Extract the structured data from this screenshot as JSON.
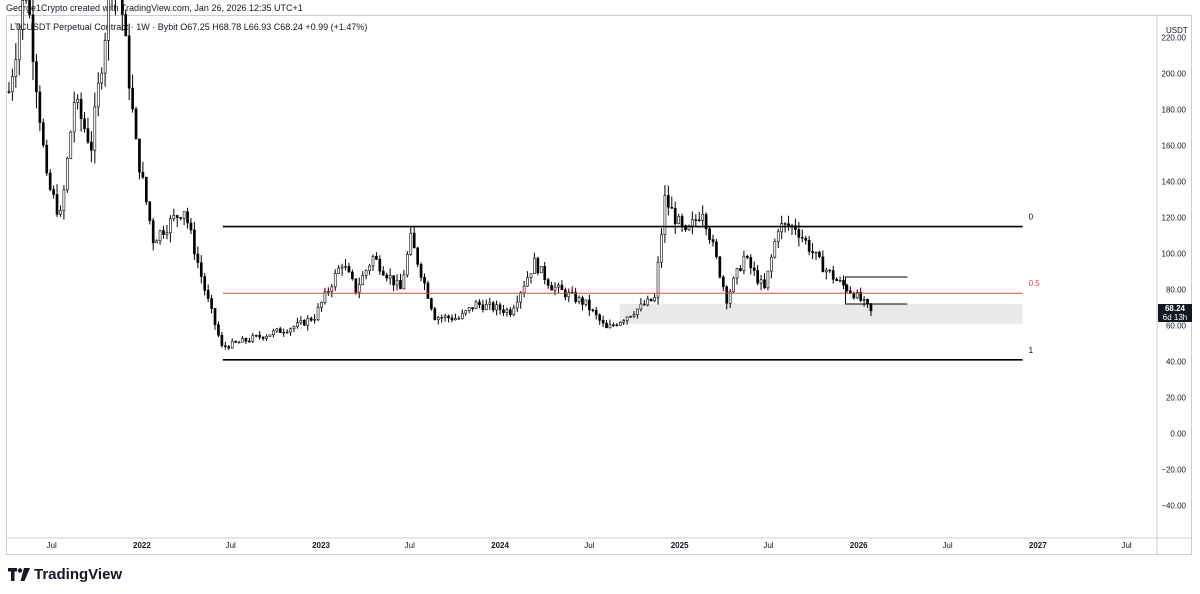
{
  "header": {
    "text": "George1Crypto created with TradingView.com, Jan 26, 2026 12:35 UTC+1"
  },
  "legend": {
    "symbol": "LTCUSDT Perpetual Contract · 1W · Bybit",
    "ohlc": "O67.25 H68.78 L66.93 C68.24 +0.99 (+1.47%)"
  },
  "price_tag": {
    "price": "68.24",
    "countdown": "6d 13h"
  },
  "brand": {
    "name": "TradingView"
  },
  "chart_data": {
    "type": "candlestick",
    "y_axis": {
      "unit": "USDT",
      "ticks": [
        -40,
        -20,
        0,
        20,
        40,
        60,
        80,
        100,
        120,
        140,
        160,
        180,
        200,
        220
      ],
      "tick_labels": [
        "−40.00",
        "−20.00",
        "0.00",
        "20.00",
        "40.00",
        "60.00",
        "80.00",
        "100.00",
        "120.00",
        "140.00",
        "160.00",
        "180.00",
        "200.00",
        "220.00"
      ],
      "ylim": [
        -58,
        232
      ]
    },
    "x_axis": {
      "range": [
        "2021-04-01",
        "2027-09-01"
      ],
      "ticks": [
        {
          "date": "2021-07-01",
          "label": "Jul",
          "bold": false
        },
        {
          "date": "2022-01-01",
          "label": "2022",
          "bold": true
        },
        {
          "date": "2022-07-01",
          "label": "Jul",
          "bold": false
        },
        {
          "date": "2023-01-01",
          "label": "2023",
          "bold": true
        },
        {
          "date": "2023-07-01",
          "label": "Jul",
          "bold": false
        },
        {
          "date": "2024-01-01",
          "label": "2024",
          "bold": true
        },
        {
          "date": "2024-07-01",
          "label": "Jul",
          "bold": false
        },
        {
          "date": "2025-01-01",
          "label": "2025",
          "bold": true
        },
        {
          "date": "2025-07-01",
          "label": "Jul",
          "bold": false
        },
        {
          "date": "2026-01-01",
          "label": "2026",
          "bold": true
        },
        {
          "date": "2026-07-01",
          "label": "Jul",
          "bold": false
        },
        {
          "date": "2027-01-01",
          "label": "2027",
          "bold": true
        },
        {
          "date": "2027-07-01",
          "label": "Jul",
          "bold": false
        }
      ]
    },
    "range_levels": [
      {
        "label": "0",
        "value": 115,
        "color": "#000000",
        "from": "2022-06-15",
        "to": "2026-12-01"
      },
      {
        "label": "0.5",
        "value": 78,
        "color": "#e0463f",
        "from": "2022-06-15",
        "to": "2026-12-01"
      },
      {
        "label": "1",
        "value": 41,
        "color": "#000000",
        "from": "2022-06-15",
        "to": "2026-12-01"
      }
    ],
    "zone": {
      "from": "2024-09-01",
      "to": "2026-12-01",
      "low": 61,
      "high": 72,
      "color": "#e9e9ea"
    },
    "trend_boxes": [
      {
        "from": "2025-12-05",
        "to": "2026-04-10",
        "top": 87,
        "bottom": 72
      }
    ],
    "candle_anchors": [
      {
        "date": "2021-04-05",
        "price": 190
      },
      {
        "date": "2021-05-10",
        "price": 250
      },
      {
        "date": "2021-06-21",
        "price": 140
      },
      {
        "date": "2021-07-20",
        "price": 120
      },
      {
        "date": "2021-08-16",
        "price": 185
      },
      {
        "date": "2021-09-20",
        "price": 160
      },
      {
        "date": "2021-11-08",
        "price": 270
      },
      {
        "date": "2021-12-20",
        "price": 160
      },
      {
        "date": "2022-01-24",
        "price": 108
      },
      {
        "date": "2022-03-28",
        "price": 125
      },
      {
        "date": "2022-05-09",
        "price": 80
      },
      {
        "date": "2022-06-13",
        "price": 48
      },
      {
        "date": "2022-09-12",
        "price": 55
      },
      {
        "date": "2022-11-14",
        "price": 60
      },
      {
        "date": "2022-12-19",
        "price": 65
      },
      {
        "date": "2023-02-13",
        "price": 95
      },
      {
        "date": "2023-03-13",
        "price": 80
      },
      {
        "date": "2023-04-17",
        "price": 98
      },
      {
        "date": "2023-06-12",
        "price": 80
      },
      {
        "date": "2023-07-03",
        "price": 108
      },
      {
        "date": "2023-08-21",
        "price": 65
      },
      {
        "date": "2023-10-09",
        "price": 64
      },
      {
        "date": "2023-11-13",
        "price": 72
      },
      {
        "date": "2024-01-22",
        "price": 68
      },
      {
        "date": "2024-03-11",
        "price": 95
      },
      {
        "date": "2024-04-15",
        "price": 82
      },
      {
        "date": "2024-06-24",
        "price": 72
      },
      {
        "date": "2024-08-05",
        "price": 58
      },
      {
        "date": "2024-09-30",
        "price": 68
      },
      {
        "date": "2024-11-11",
        "price": 75
      },
      {
        "date": "2024-12-02",
        "price": 130
      },
      {
        "date": "2025-01-13",
        "price": 110
      },
      {
        "date": "2025-02-17",
        "price": 125
      },
      {
        "date": "2025-04-07",
        "price": 75
      },
      {
        "date": "2025-05-12",
        "price": 98
      },
      {
        "date": "2025-06-23",
        "price": 80
      },
      {
        "date": "2025-07-21",
        "price": 115
      },
      {
        "date": "2025-08-25",
        "price": 115
      },
      {
        "date": "2025-10-13",
        "price": 95
      },
      {
        "date": "2025-11-17",
        "price": 85
      },
      {
        "date": "2025-12-22",
        "price": 78
      },
      {
        "date": "2026-01-26",
        "price": 68.24
      }
    ]
  }
}
